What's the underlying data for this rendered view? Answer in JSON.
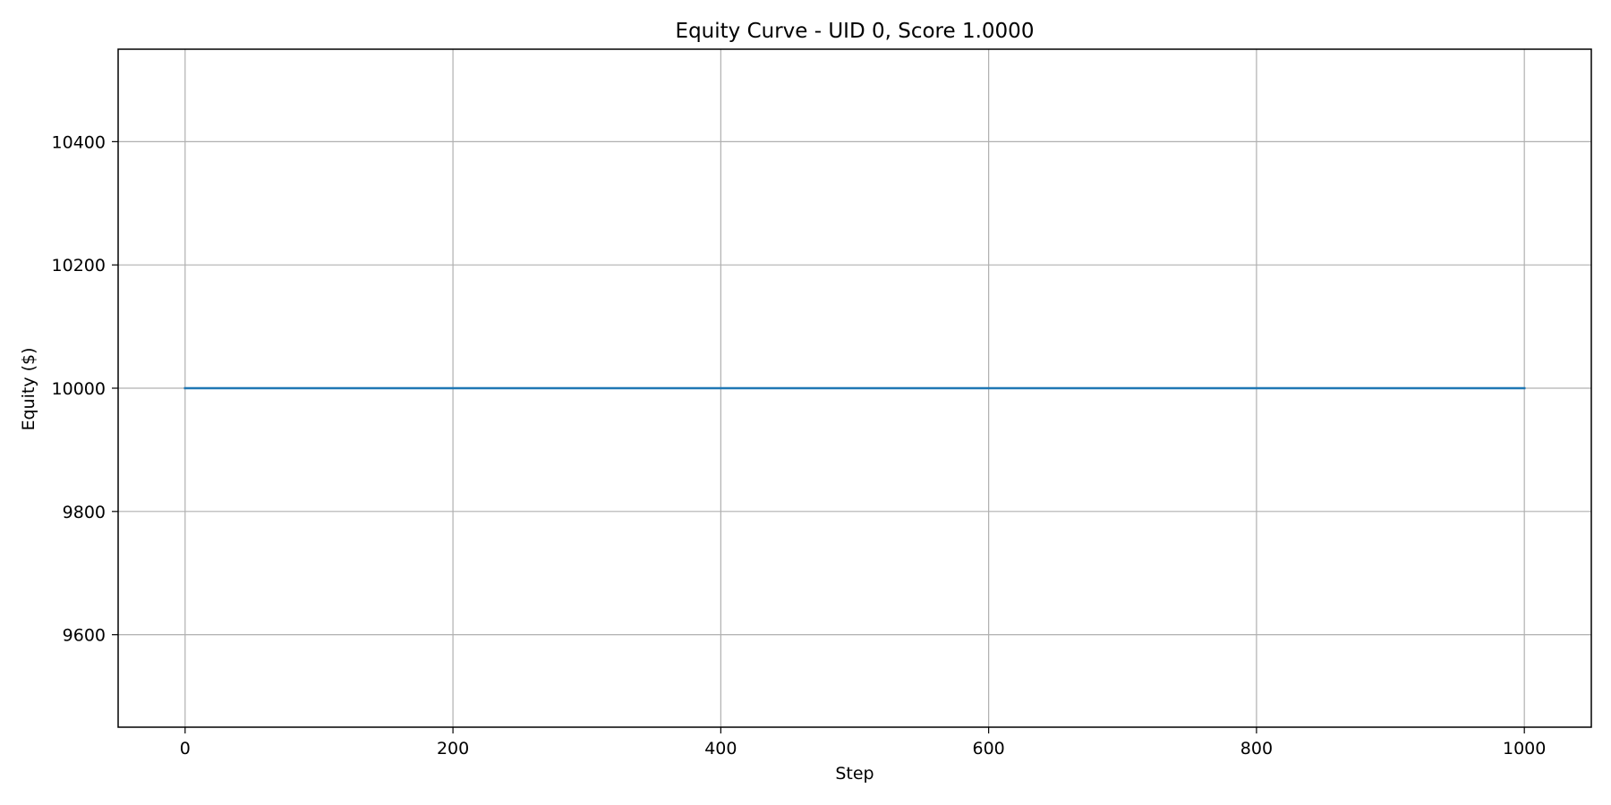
{
  "chart_data": {
    "type": "line",
    "title": "Equity Curve - UID 0, Score 1.0000",
    "xlabel": "Step",
    "ylabel": "Equity ($)",
    "xlim": [
      -50,
      1050
    ],
    "ylim": [
      9450,
      10550
    ],
    "xticks": [
      0,
      200,
      400,
      600,
      800,
      1000
    ],
    "yticks": [
      9600,
      9800,
      10000,
      10200,
      10400
    ],
    "grid": true,
    "series": [
      {
        "color": "#1f77b4",
        "x": [
          0,
          1000
        ],
        "y": [
          10000,
          10000
        ]
      }
    ]
  }
}
